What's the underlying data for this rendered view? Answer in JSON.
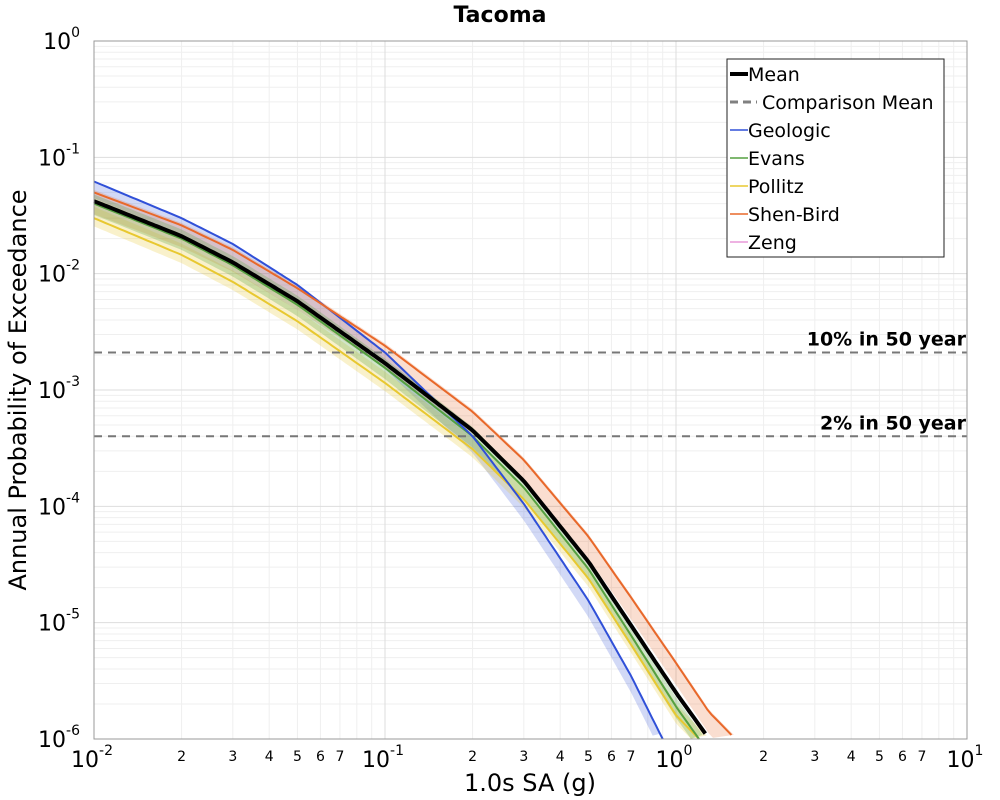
{
  "chart_data": {
    "type": "line",
    "title": "Tacoma",
    "xlabel": "1.0s SA (g)",
    "ylabel": "Annual Probability of Exceedance",
    "x_scale": "log",
    "y_scale": "log",
    "xlim": [
      0.01,
      10
    ],
    "ylim": [
      1e-06,
      1
    ],
    "grid": true,
    "legend_position": "top-right",
    "x_ticks": {
      "major": [
        {
          "value": 0.01,
          "base": "10",
          "exp": "-2"
        },
        {
          "value": 0.1,
          "base": "10",
          "exp": "-1"
        },
        {
          "value": 1,
          "base": "10",
          "exp": "0"
        },
        {
          "value": 10,
          "base": "10",
          "exp": "1"
        }
      ],
      "minor_labels": [
        "2",
        "3",
        "4",
        "5",
        "6",
        "7"
      ]
    },
    "y_ticks": {
      "major": [
        {
          "value": 1,
          "base": "10",
          "exp": "0"
        },
        {
          "value": 0.1,
          "base": "10",
          "exp": "-1"
        },
        {
          "value": 0.01,
          "base": "10",
          "exp": "-2"
        },
        {
          "value": 0.001,
          "base": "10",
          "exp": "-3"
        },
        {
          "value": 0.0001,
          "base": "10",
          "exp": "-4"
        },
        {
          "value": 1e-05,
          "base": "10",
          "exp": "-5"
        },
        {
          "value": 1e-06,
          "base": "10",
          "exp": "-6"
        }
      ]
    },
    "reference_lines": [
      {
        "label": "10% in 50 year",
        "y": 0.0021,
        "color": "#777777"
      },
      {
        "label": "2% in 50 year",
        "y": 0.0004,
        "color": "#777777"
      }
    ],
    "series": [
      {
        "name": "Mean",
        "color": "#000000",
        "style": "solid",
        "width": 4,
        "x": [
          0.01,
          0.02,
          0.03,
          0.05,
          0.1,
          0.2,
          0.3,
          0.5,
          0.7,
          1.0,
          1.3
        ],
        "y": [
          0.042,
          0.021,
          0.0125,
          0.0058,
          0.0017,
          0.00045,
          0.000165,
          3.35e-05,
          9.5e-06,
          2.5e-06,
          1e-06
        ]
      },
      {
        "name": "Comparison Mean",
        "color": "#808080",
        "style": "dashed",
        "width": 3,
        "x": [],
        "y": []
      },
      {
        "name": "Geologic",
        "color": "#3050d8",
        "style": "solid",
        "width": 1,
        "x": [
          0.01,
          0.02,
          0.03,
          0.05,
          0.1,
          0.2,
          0.3,
          0.5,
          0.7,
          0.9
        ],
        "y": [
          0.062,
          0.03,
          0.018,
          0.008,
          0.0021,
          0.0004,
          0.000105,
          1.55e-05,
          3.5e-06,
          1e-06
        ]
      },
      {
        "name": "Evans",
        "color": "#55a040",
        "style": "solid",
        "width": 1,
        "x": [
          0.01,
          0.02,
          0.03,
          0.05,
          0.1,
          0.2,
          0.3,
          0.5,
          0.7,
          1.0,
          1.2
        ],
        "y": [
          0.04,
          0.02,
          0.0118,
          0.0054,
          0.00155,
          0.0004,
          0.000145,
          2.9e-05,
          7.8e-06,
          1.9e-06,
          1e-06
        ]
      },
      {
        "name": "Pollitz",
        "color": "#e8c830",
        "style": "solid",
        "width": 1,
        "x": [
          0.01,
          0.02,
          0.03,
          0.05,
          0.1,
          0.2,
          0.3,
          0.5,
          0.7,
          1.0,
          1.2
        ],
        "y": [
          0.03,
          0.0145,
          0.0085,
          0.0039,
          0.00115,
          0.00031,
          0.000115,
          2.4e-05,
          6.5e-06,
          1.6e-06,
          1e-06
        ]
      },
      {
        "name": "Shen-Bird",
        "color": "#e8682a",
        "style": "solid",
        "width": 1,
        "x": [
          0.01,
          0.02,
          0.03,
          0.05,
          0.1,
          0.2,
          0.3,
          0.5,
          0.7,
          1.0,
          1.3,
          1.6
        ],
        "y": [
          0.05,
          0.026,
          0.016,
          0.0075,
          0.0024,
          0.00065,
          0.00025,
          5.5e-05,
          1.65e-05,
          4.5e-06,
          1.7e-06,
          1e-06
        ]
      },
      {
        "name": "Zeng",
        "color": "#e898d8",
        "style": "solid",
        "width": 1,
        "x": [],
        "y": []
      }
    ]
  }
}
